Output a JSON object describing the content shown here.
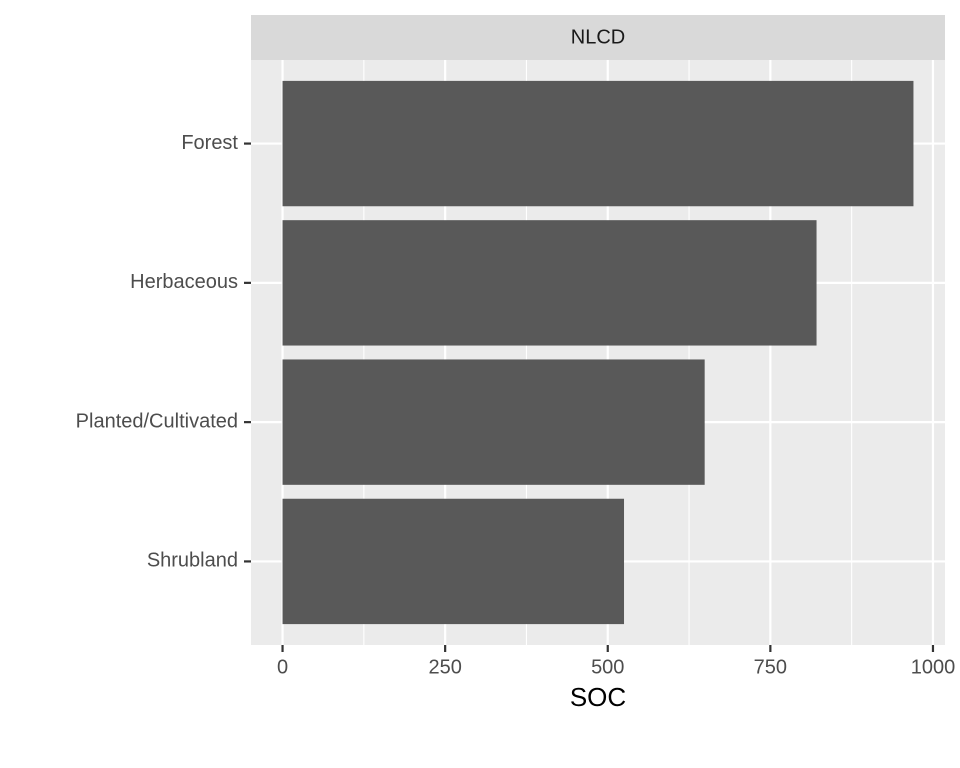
{
  "chart_data": {
    "type": "bar",
    "orientation": "horizontal",
    "facet_label": "NLCD",
    "xlabel": "SOC",
    "categories": [
      "Forest",
      "Herbaceous",
      "Planted/Cultivated",
      "Shrubland"
    ],
    "values": [
      970,
      821,
      649,
      525
    ],
    "color": "#595959",
    "xlim": [
      -48.5,
      1018.5
    ],
    "xticks": [
      0,
      250,
      500,
      750,
      1000
    ],
    "minor_xticks": [
      125,
      375,
      625,
      875
    ],
    "grid": true
  }
}
